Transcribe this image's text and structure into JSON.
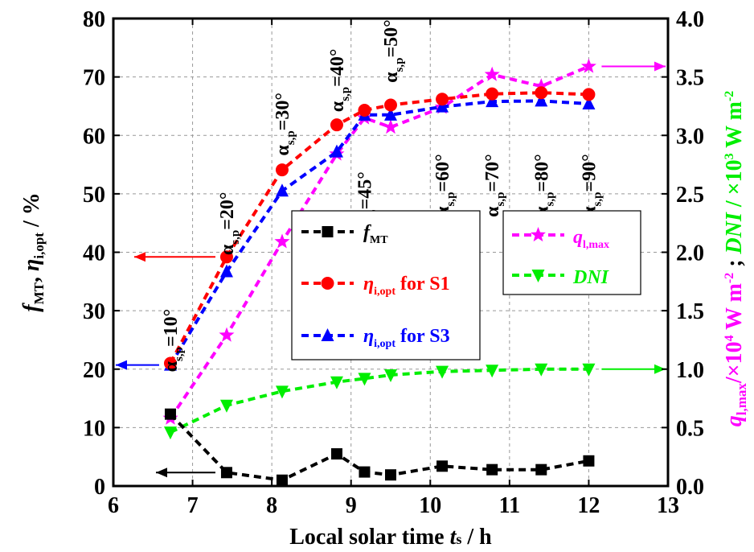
{
  "chart_data": {
    "type": "line",
    "x_axis": {
      "label_prefix": "Local solar time ",
      "label_var": "t",
      "label_sub": "s",
      "label_suffix": " / h",
      "range": [
        6,
        13
      ],
      "ticks": [
        "6",
        "7",
        "8",
        "9",
        "10",
        "11",
        "12",
        "13"
      ]
    },
    "y_left": {
      "label_f": "f",
      "label_f_sub": "MT",
      "label_eta": "η",
      "label_eta_sub": "i,opt",
      "label_unit": " / %",
      "range": [
        0,
        80
      ],
      "ticks": [
        "0",
        "10",
        "20",
        "30",
        "40",
        "50",
        "60",
        "70",
        "80"
      ]
    },
    "y_right": {
      "label_q": "q",
      "label_q_sub": "l,max",
      "label_q_unit": "/×10",
      "label_q_exp": "4",
      "label_q_unit2": " W m",
      "label_q_exp2": "-2",
      "label_sep": " ; ",
      "label_dni": "DNI",
      "label_dni_unit": " / ×10",
      "label_dni_exp": "3",
      "label_dni_unit2": " W m",
      "label_dni_exp2": "-2",
      "range": [
        0,
        4
      ],
      "ticks": [
        "0.0",
        "0.5",
        "1.0",
        "1.5",
        "2.0",
        "2.5",
        "3.0",
        "3.5",
        "4.0"
      ]
    },
    "grid": true,
    "x": [
      6.72,
      7.43,
      8.13,
      8.82,
      9.17,
      9.5,
      10.15,
      10.78,
      11.4,
      12.0
    ],
    "series": [
      {
        "key": "fmt",
        "legend": "f",
        "legend_sub": "MT",
        "color": "#000000",
        "marker": "square",
        "axis": "left",
        "values": [
          12.3,
          2.3,
          1.0,
          5.5,
          2.4,
          1.9,
          3.4,
          2.8,
          2.8,
          4.3
        ]
      },
      {
        "key": "s1",
        "legend": "η",
        "legend_sub": "i,opt",
        "legend_suffix": " for S1",
        "color": "#ff0000",
        "marker": "circle",
        "axis": "left",
        "values": [
          21.0,
          39.2,
          54.1,
          61.8,
          64.3,
          65.2,
          66.2,
          67.1,
          67.3,
          67.0
        ]
      },
      {
        "key": "s3",
        "legend": "η",
        "legend_sub": "i,opt",
        "legend_suffix": " for S3",
        "color": "#0000ff",
        "marker": "triangle-up",
        "axis": "left",
        "values": [
          20.7,
          36.7,
          50.5,
          57.2,
          63.5,
          63.5,
          64.9,
          65.8,
          65.9,
          65.4
        ]
      },
      {
        "key": "q",
        "legend": "q",
        "legend_sub": "l,max",
        "color": "#ff00ff",
        "marker": "star",
        "axis": "right",
        "values": [
          0.58,
          1.29,
          2.09,
          2.84,
          3.15,
          3.07,
          3.24,
          3.52,
          3.42,
          3.59
        ]
      },
      {
        "key": "dni",
        "legend": "DNI",
        "color": "#00ee00",
        "marker": "triangle-down",
        "axis": "right",
        "values": [
          0.46,
          0.69,
          0.81,
          0.89,
          0.92,
          0.95,
          0.98,
          0.99,
          1.0,
          1.0
        ]
      }
    ],
    "annotations": [
      {
        "alpha": "α",
        "sub": "s,p",
        "text": "=10°"
      },
      {
        "alpha": "α",
        "sub": "s,p",
        "text": "=20°"
      },
      {
        "alpha": "α",
        "sub": "s,p",
        "text": "=30°"
      },
      {
        "alpha": "α",
        "sub": "s,p",
        "text": "=40°"
      },
      {
        "alpha": "α",
        "sub": "s,p",
        "text": "=45°"
      },
      {
        "alpha": "α",
        "sub": "s,p",
        "text": "=50°"
      },
      {
        "alpha": "α",
        "sub": "s,p",
        "text": "=60°"
      },
      {
        "alpha": "α",
        "sub": "s,p",
        "text": "=70°"
      },
      {
        "alpha": "α",
        "sub": "s,p",
        "text": "=80°"
      },
      {
        "alpha": "α",
        "sub": "s,p",
        "text": "=90°"
      }
    ],
    "axis_arrows": [
      {
        "series": "s1",
        "direction": "left"
      },
      {
        "series": "s3",
        "direction": "left"
      },
      {
        "series": "fmt",
        "direction": "left"
      },
      {
        "series": "q",
        "direction": "right"
      },
      {
        "series": "dni",
        "direction": "right"
      }
    ]
  }
}
